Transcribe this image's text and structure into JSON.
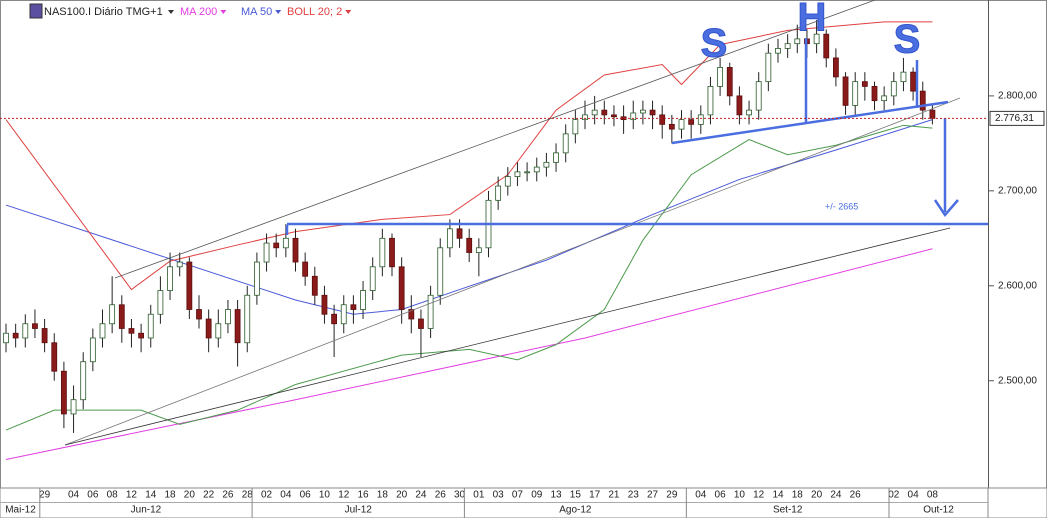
{
  "chart_data": {
    "type": "candlestick",
    "title": "NAS100.I Diário TMG+1",
    "categories": [
      null,
      null,
      null,
      null,
      "29",
      null,
      null,
      "04",
      null,
      "06",
      null,
      "08",
      null,
      "12",
      null,
      "14",
      null,
      "18",
      null,
      "20",
      null,
      "22",
      null,
      "26",
      null,
      "28",
      null,
      "02",
      null,
      "04",
      null,
      "06",
      null,
      "10",
      null,
      "12",
      null,
      "16",
      null,
      "18",
      null,
      "20",
      null,
      "24",
      null,
      "26",
      null,
      "30",
      null,
      "01",
      null,
      "03",
      null,
      "07",
      null,
      "09",
      null,
      "13",
      null,
      "15",
      null,
      "17",
      null,
      "21",
      null,
      "23",
      null,
      "27",
      null,
      "29",
      null,
      null,
      "04",
      null,
      "06",
      null,
      "10",
      null,
      "12",
      null,
      "14",
      null,
      "18",
      null,
      "20",
      null,
      "24",
      null,
      "26",
      null,
      null,
      null,
      "02",
      null,
      "04",
      null,
      "08"
    ],
    "months": [
      {
        "label": "Mai-12",
        "start": 0
      },
      {
        "label": "Jun-12",
        "start": 4
      },
      {
        "label": "Jul-12",
        "start": 26
      },
      {
        "label": "Ago-12",
        "start": 48
      },
      {
        "label": "Set-12",
        "start": 71
      },
      {
        "label": "Out-12",
        "start": 92
      }
    ],
    "open": [
      2540,
      2550,
      2545,
      2560,
      2555,
      2540,
      2510,
      2465,
      2480,
      2520,
      2545,
      2560,
      2580,
      2555,
      2550,
      2545,
      2570,
      2595,
      2620,
      2625,
      2575,
      2565,
      2545,
      2560,
      2575,
      2540,
      2590,
      2625,
      2645,
      2640,
      2650,
      2625,
      2610,
      2590,
      2570,
      2560,
      2580,
      2575,
      2595,
      2620,
      2650,
      2620,
      2575,
      2565,
      2555,
      2590,
      2640,
      2660,
      2650,
      2635,
      2640,
      2690,
      2705,
      2715,
      2720,
      2720,
      2725,
      2730,
      2740,
      2760,
      2775,
      2780,
      2785,
      2780,
      2778,
      2775,
      2782,
      2785,
      2780,
      2770,
      2765,
      2775,
      2770,
      2780,
      2810,
      2830,
      2800,
      2780,
      2785,
      2815,
      2845,
      2850,
      2855,
      2860,
      2855,
      2865,
      2840,
      2820,
      2790,
      2815,
      2810,
      2795,
      2800,
      2815,
      2825,
      2805,
      2785
    ],
    "high": [
      2560,
      2560,
      2570,
      2575,
      2565,
      2550,
      2520,
      2495,
      2530,
      2555,
      2575,
      2610,
      2590,
      2565,
      2560,
      2580,
      2610,
      2635,
      2635,
      2630,
      2590,
      2575,
      2575,
      2585,
      2585,
      2600,
      2635,
      2655,
      2655,
      2665,
      2660,
      2635,
      2620,
      2600,
      2580,
      2590,
      2590,
      2605,
      2630,
      2660,
      2655,
      2630,
      2590,
      2575,
      2600,
      2650,
      2670,
      2670,
      2660,
      2650,
      2700,
      2715,
      2725,
      2730,
      2730,
      2735,
      2740,
      2750,
      2770,
      2785,
      2795,
      2800,
      2795,
      2790,
      2790,
      2795,
      2795,
      2795,
      2790,
      2780,
      2785,
      2785,
      2790,
      2820,
      2840,
      2835,
      2810,
      2795,
      2825,
      2855,
      2860,
      2865,
      2875,
      2870,
      2880,
      2870,
      2850,
      2825,
      2825,
      2825,
      2815,
      2810,
      2825,
      2840,
      2830,
      2815,
      2790
    ],
    "low": [
      2530,
      2535,
      2535,
      2545,
      2530,
      2500,
      2450,
      2445,
      2470,
      2510,
      2535,
      2550,
      2540,
      2535,
      2530,
      2535,
      2560,
      2585,
      2610,
      2565,
      2555,
      2530,
      2535,
      2550,
      2515,
      2530,
      2580,
      2615,
      2630,
      2630,
      2615,
      2600,
      2580,
      2560,
      2525,
      2550,
      2560,
      2565,
      2585,
      2610,
      2610,
      2560,
      2550,
      2525,
      2545,
      2580,
      2630,
      2640,
      2625,
      2610,
      2630,
      2680,
      2695,
      2705,
      2710,
      2710,
      2715,
      2720,
      2730,
      2750,
      2765,
      2770,
      2770,
      2768,
      2760,
      2765,
      2770,
      2765,
      2755,
      2750,
      2755,
      2755,
      2760,
      2770,
      2800,
      2790,
      2770,
      2770,
      2775,
      2805,
      2835,
      2840,
      2845,
      2840,
      2845,
      2830,
      2810,
      2780,
      2780,
      2795,
      2785,
      2785,
      2790,
      2805,
      2795,
      2775,
      2770
    ],
    "close": [
      2550,
      2545,
      2560,
      2555,
      2540,
      2510,
      2465,
      2480,
      2520,
      2545,
      2560,
      2580,
      2555,
      2550,
      2545,
      2570,
      2595,
      2620,
      2625,
      2575,
      2565,
      2545,
      2560,
      2575,
      2540,
      2590,
      2625,
      2645,
      2640,
      2650,
      2625,
      2610,
      2590,
      2570,
      2560,
      2580,
      2575,
      2595,
      2620,
      2650,
      2620,
      2575,
      2565,
      2555,
      2590,
      2640,
      2660,
      2650,
      2635,
      2640,
      2690,
      2705,
      2715,
      2720,
      2720,
      2725,
      2730,
      2740,
      2760,
      2775,
      2780,
      2785,
      2780,
      2778,
      2775,
      2782,
      2785,
      2780,
      2770,
      2765,
      2775,
      2770,
      2780,
      2810,
      2830,
      2800,
      2780,
      2785,
      2815,
      2845,
      2850,
      2855,
      2860,
      2855,
      2865,
      2840,
      2820,
      2790,
      2815,
      2810,
      2795,
      2800,
      2815,
      2825,
      2805,
      2785,
      2776.31
    ],
    "up_color": "#ffffff",
    "down_color": "#8b1a1a",
    "ylim": [
      2387,
      2901
    ],
    "yticks": [
      {
        "value": 2500,
        "label": "2.500,00"
      },
      {
        "value": 2600,
        "label": "2.600,00"
      },
      {
        "value": 2700,
        "label": "2.700,00"
      },
      {
        "value": 2800,
        "label": "2.800,00"
      }
    ],
    "last_price": {
      "value": 2776.31,
      "label": "2.776,31"
    },
    "series": [
      {
        "name": "MA 200",
        "color": "#e23ee2",
        "x": [
          0,
          30,
          60,
          96
        ],
        "values": [
          2417,
          2480,
          2545,
          2639
        ]
      },
      {
        "name": "MA 50",
        "color": "#4a5ad8",
        "x": [
          0,
          30,
          36,
          41,
          47,
          56,
          67,
          76,
          86,
          96
        ],
        "values": [
          2685,
          2585,
          2570,
          2575,
          2596,
          2627,
          2675,
          2712,
          2743,
          2775
        ]
      },
      {
        "name": "BOLL 20; 2",
        "color": "#e04040",
        "x": [
          0,
          13,
          17,
          24,
          30,
          39,
          46,
          52,
          57,
          62,
          68,
          70,
          74,
          81,
          91,
          96
        ],
        "values": [
          2775,
          2596,
          2626,
          2643,
          2657,
          2670,
          2675,
          2717,
          2785,
          2822,
          2833,
          2812,
          2854,
          2869,
          2878,
          2878
        ],
        "lower": {
          "color": "#4c9a4c",
          "x": [
            0,
            5,
            14,
            18,
            24,
            30,
            41,
            48,
            53,
            57,
            62,
            66,
            71,
            77,
            81,
            86,
            93,
            96
          ],
          "values": [
            2448,
            2469,
            2469,
            2454,
            2469,
            2496,
            2527,
            2533,
            2522,
            2538,
            2575,
            2648,
            2717,
            2754,
            2738,
            2748,
            2769,
            2766
          ]
        }
      }
    ],
    "annotations": {
      "letters": [
        "S",
        "H",
        "S"
      ],
      "target": {
        "value": 2665,
        "label": "+/- 2665"
      }
    }
  }
}
